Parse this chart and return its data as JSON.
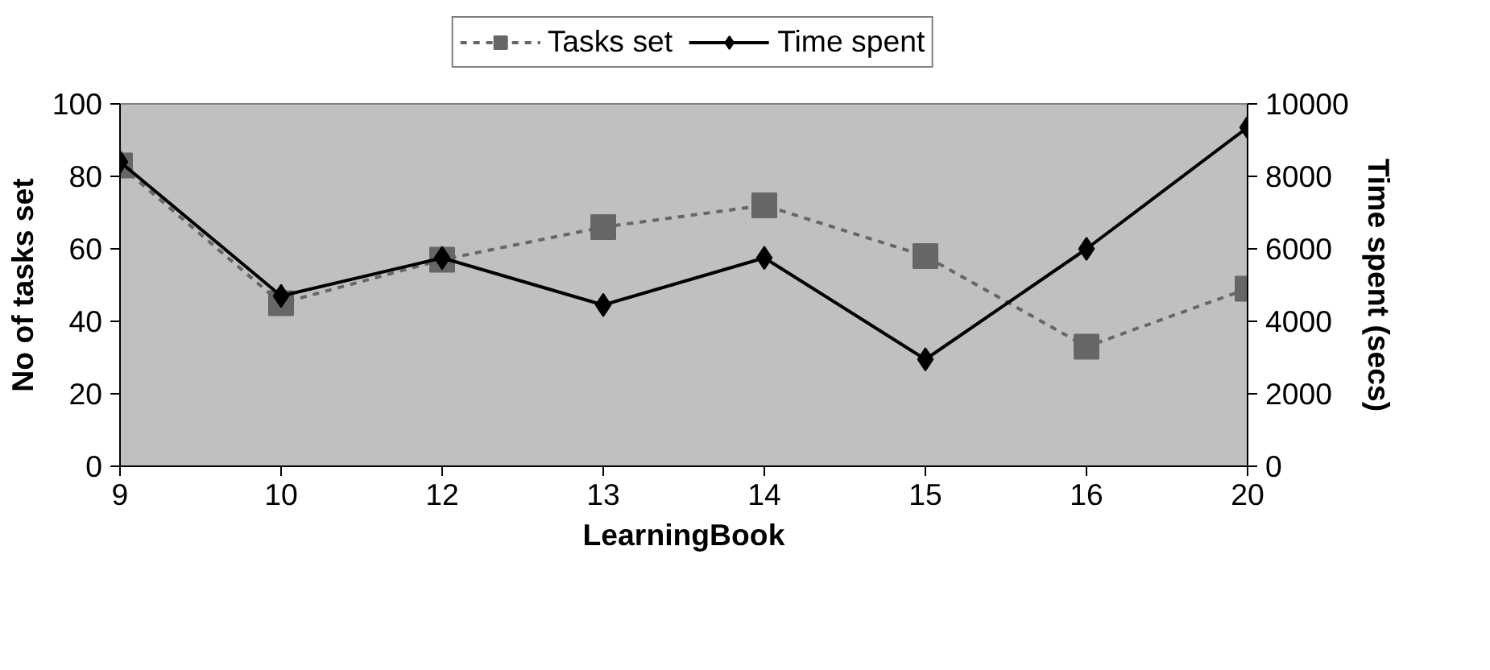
{
  "chart_data": {
    "type": "line",
    "xlabel": "LearningBook",
    "ylabel": "No of tasks set",
    "y2label": "Time spent (secs)",
    "categories": [
      "9",
      "10",
      "12",
      "13",
      "14",
      "15",
      "16",
      "20"
    ],
    "series": [
      {
        "name": "Tasks set",
        "color": "#666666",
        "values": [
          83,
          45,
          57,
          66,
          72,
          58,
          33,
          49
        ],
        "marker": "square",
        "line_style": "dotted"
      },
      {
        "name": "Time spent",
        "color": "#000000",
        "values": [
          8400,
          4700,
          5750,
          4450,
          5750,
          2950,
          6000,
          9350
        ],
        "marker": "diamond",
        "line_style": "solid",
        "axis": "y2"
      }
    ],
    "ylim": [
      0,
      100
    ],
    "yticks": [
      0,
      20,
      40,
      60,
      80,
      100
    ],
    "y2lim": [
      0,
      10000
    ],
    "y2ticks": [
      0,
      2000,
      4000,
      6000,
      8000,
      10000
    ],
    "grid": false,
    "legend": "top"
  }
}
